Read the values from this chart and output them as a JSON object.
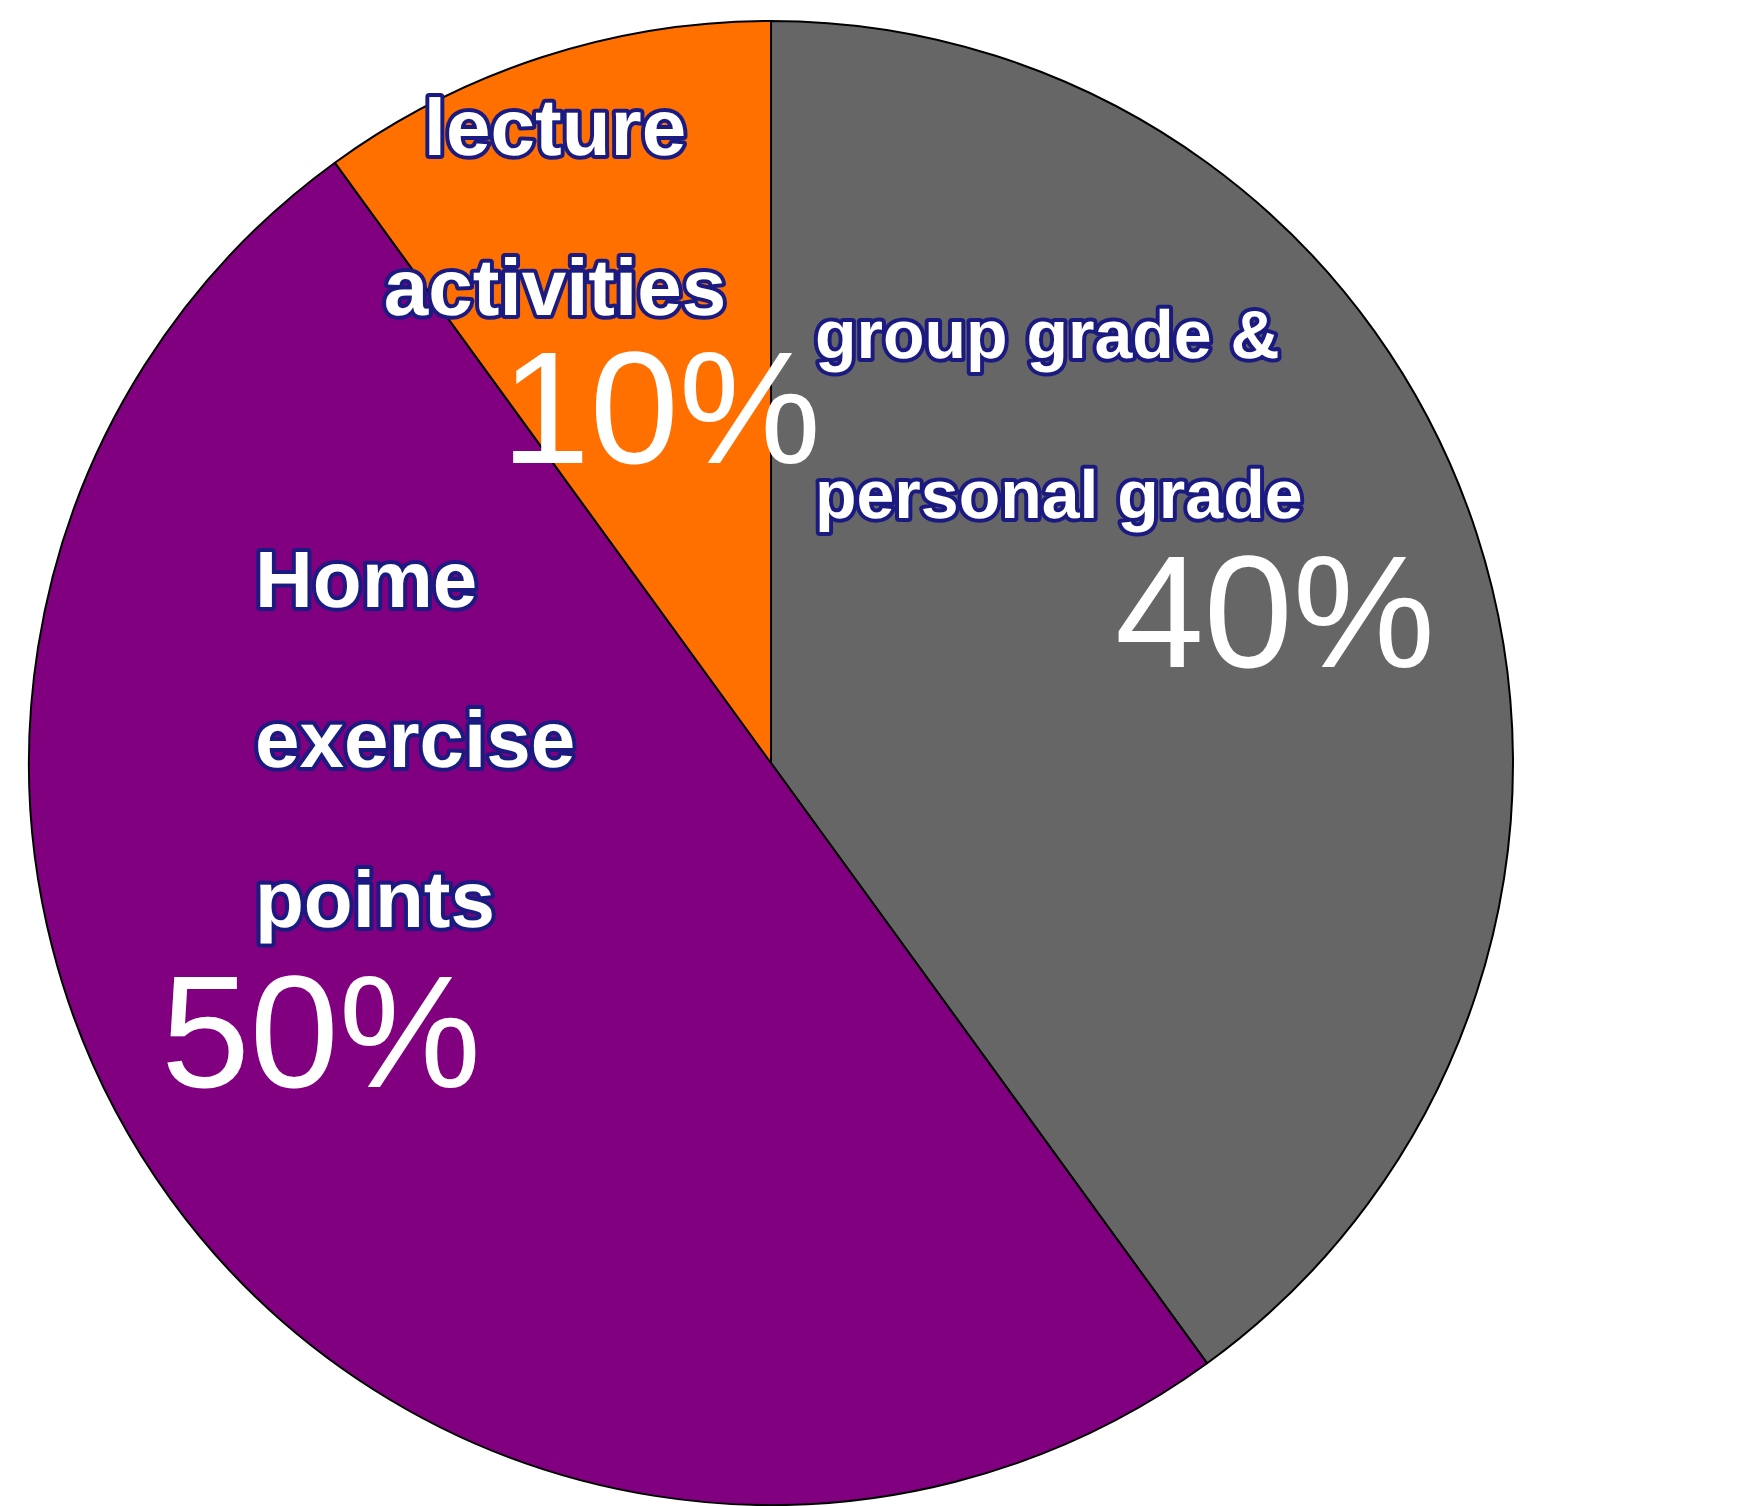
{
  "chart_data": {
    "type": "pie",
    "categories": [
      "group grade & personal grade",
      "Home exercise points",
      "lecture activities"
    ],
    "values": [
      40,
      50,
      10
    ],
    "colors": [
      "#666666",
      "#800080",
      "#ff7000"
    ],
    "value_labels": [
      "40%",
      "50%",
      "10%"
    ],
    "legend": false
  }
}
